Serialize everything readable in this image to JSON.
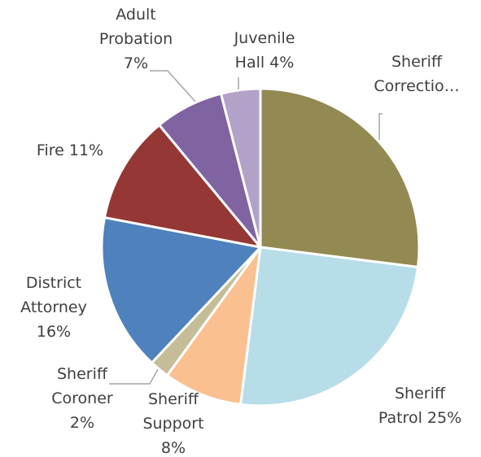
{
  "chart_data": {
    "type": "pie",
    "title": "",
    "start_angle_deg": 0,
    "direction": "clockwise",
    "legend": "none",
    "slices": [
      {
        "name": "Sheriff Corrections",
        "value": 27,
        "color": "#938953",
        "label_lines": [
          "Sheriff",
          "Correctio…"
        ]
      },
      {
        "name": "Sheriff Patrol",
        "value": 25,
        "color": "#b7dde8",
        "label_lines": [
          "Sheriff",
          "Patrol 25%"
        ]
      },
      {
        "name": "Sheriff Support",
        "value": 8,
        "color": "#fac090",
        "label_lines": [
          "Sheriff",
          "Support",
          "8%"
        ]
      },
      {
        "name": "Sheriff Coroner",
        "value": 2,
        "color": "#c4bd97",
        "label_lines": [
          "Sheriff",
          "Coroner",
          "2%"
        ]
      },
      {
        "name": "District Attorney",
        "value": 16,
        "color": "#4f81bd",
        "label_lines": [
          "District",
          "Attorney",
          "16%"
        ]
      },
      {
        "name": "Fire",
        "value": 11,
        "color": "#953735",
        "label_lines": [
          "Fire 11%"
        ]
      },
      {
        "name": "Adult Probation",
        "value": 7,
        "color": "#8064a2",
        "label_lines": [
          "Adult",
          "Probation",
          "7%"
        ]
      },
      {
        "name": "Juvenile Hall",
        "value": 4,
        "color": "#b3a2c7",
        "label_lines": [
          "Juvenile",
          "Hall 4%"
        ]
      }
    ]
  }
}
